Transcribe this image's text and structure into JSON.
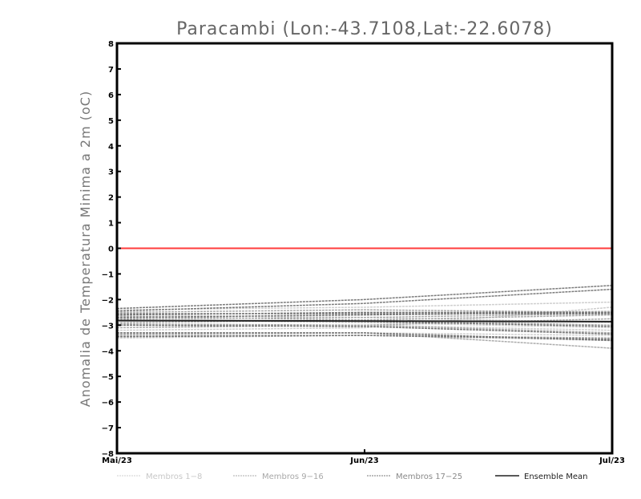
{
  "chart_data": {
    "type": "line",
    "title": "Paracambi (Lon:-43.7108,Lat:-22.6078)",
    "xlabel": "",
    "ylabel": "Anomalia de Temperatura Minima a 2m (oC)",
    "x": [
      "Mai/23",
      "Jun/23",
      "Jul/23"
    ],
    "ylim": [
      -8,
      8
    ],
    "yticks": [
      -8,
      -7,
      -6,
      -5,
      -4,
      -3,
      -2,
      -1,
      0,
      1,
      2,
      3,
      4,
      5,
      6,
      7,
      8
    ],
    "grid": false,
    "reference_line": {
      "y": 0,
      "color": "#ff3b3b"
    },
    "legend_position": "bottom",
    "groups": [
      {
        "name": "Membros 1-8",
        "color": "#cfcfcf",
        "dashed": true,
        "members": [
          [
            -2.4,
            -2.3,
            -2.1
          ],
          [
            -2.7,
            -2.6,
            -2.45
          ],
          [
            -3.0,
            -3.0,
            -3.2
          ],
          [
            -3.3,
            -3.3,
            -3.4
          ],
          [
            -2.6,
            -2.7,
            -2.9
          ],
          [
            -3.5,
            -3.4,
            -3.6
          ],
          [
            -2.8,
            -2.9,
            -3.1
          ],
          [
            -3.2,
            -3.1,
            -2.3
          ]
        ]
      },
      {
        "name": "Membros 9-16",
        "color": "#ababab",
        "dashed": true,
        "members": [
          [
            -2.5,
            -2.4,
            -2.5
          ],
          [
            -2.9,
            -2.8,
            -2.6
          ],
          [
            -3.4,
            -3.4,
            -3.5
          ],
          [
            -2.65,
            -2.8,
            -3.0
          ],
          [
            -3.1,
            -3.0,
            -2.75
          ],
          [
            -3.35,
            -3.3,
            -3.9
          ],
          [
            -2.75,
            -2.7,
            -2.55
          ],
          [
            -2.95,
            -3.0,
            -3.3
          ]
        ]
      },
      {
        "name": "Membros 17-25",
        "color": "#7a7a7a",
        "dashed": true,
        "members": [
          [
            -2.35,
            -2.0,
            -1.45
          ],
          [
            -2.45,
            -2.15,
            -1.6
          ],
          [
            -2.6,
            -2.5,
            -2.5
          ],
          [
            -2.8,
            -2.85,
            -3.05
          ],
          [
            -3.0,
            -3.05,
            -3.35
          ],
          [
            -2.7,
            -2.6,
            -2.5
          ],
          [
            -3.3,
            -3.3,
            -3.6
          ],
          [
            -2.55,
            -2.55,
            -2.55
          ],
          [
            -3.45,
            -3.4,
            -3.55
          ]
        ]
      }
    ],
    "ensemble_mean": {
      "name": "Ensemble Mean",
      "color": "#222222",
      "values": [
        -2.82,
        -2.84,
        -2.86
      ]
    }
  }
}
